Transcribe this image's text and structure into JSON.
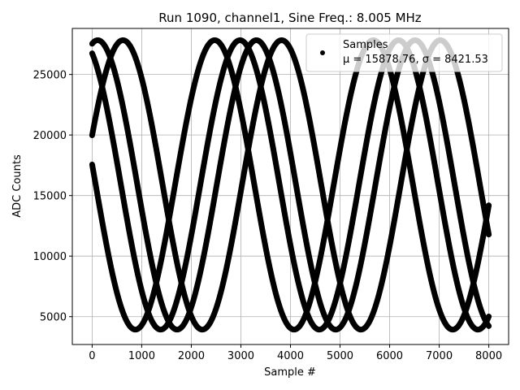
{
  "chart_data": {
    "type": "scatter",
    "title": "Run 1090, channel1, Sine Freq.: 8.005 MHz",
    "xlabel": "Sample #",
    "ylabel": "ADC Counts",
    "xlim": [
      -400,
      8400
    ],
    "ylim": [
      2700,
      28800
    ],
    "xticks": [
      0,
      1000,
      2000,
      3000,
      4000,
      5000,
      6000,
      7000,
      8000
    ],
    "yticks": [
      5000,
      10000,
      15000,
      20000,
      25000
    ],
    "grid": true,
    "legend_position": "top-right",
    "marker_color": "#000000",
    "series": [
      {
        "name": "Samples",
        "description": "μ = 15878.76, σ = 8421.53",
        "sine_params": {
          "mean": 15878.76,
          "amplitude": 11950,
          "period": 3200
        },
        "phase_offsets": [
          0.35,
          1.35,
          2.0,
          3.0
        ],
        "x_range": [
          0,
          8000
        ]
      }
    ]
  },
  "legend": {
    "series_label": "Samples",
    "stats_label": "μ = 15878.76, σ = 8421.53"
  }
}
